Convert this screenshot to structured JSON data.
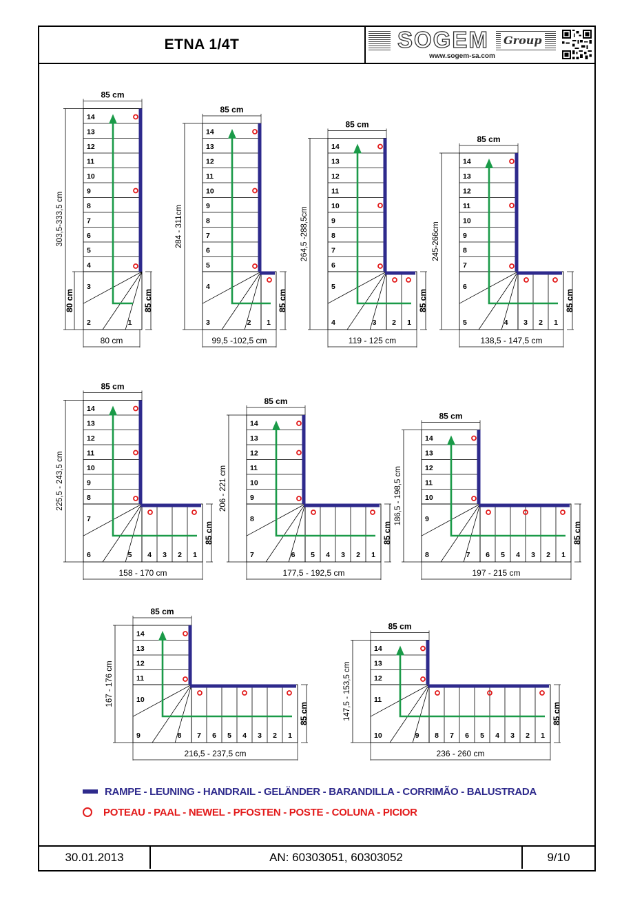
{
  "header": {
    "title": "ETNA 1/4T",
    "logo_text": "SOGEM",
    "logo_group": "Group",
    "logo_url": "www.sogem-sa.com"
  },
  "colors": {
    "handrail": "#2e2a8c",
    "newel": "#e21a1a",
    "arrow": "#1a9a48"
  },
  "diagrams": [
    {
      "width_label": "85 cm",
      "height_label": "303,5-333,5 cm",
      "landing_label": "80 cm",
      "side_label": "85 cm",
      "bottom_label": "80 cm",
      "steps_upper": [
        "14",
        "13",
        "12",
        "11",
        "10",
        "9",
        "8",
        "7",
        "6",
        "5",
        "4"
      ],
      "steps_winder": [
        "3",
        "2",
        "1"
      ],
      "steps_lower": []
    },
    {
      "width_label": "85 cm",
      "height_label": "284 - 311cm",
      "side_label": "85 cm",
      "bottom_label": "99,5 -102,5 cm",
      "steps_upper": [
        "14",
        "13",
        "12",
        "11",
        "10",
        "9",
        "8",
        "7",
        "6",
        "5"
      ],
      "steps_winder": [
        "4",
        "3",
        "2"
      ],
      "steps_lower": [
        "1"
      ]
    },
    {
      "width_label": "85 cm",
      "height_label": "264,5 -288,5cm",
      "side_label": "85 cm",
      "bottom_label": "119 - 125 cm",
      "steps_upper": [
        "14",
        "13",
        "12",
        "11",
        "10",
        "9",
        "8",
        "7",
        "6"
      ],
      "steps_winder": [
        "5",
        "4",
        "3"
      ],
      "steps_lower": [
        "2",
        "1"
      ]
    },
    {
      "width_label": "85 cm",
      "height_label": "245-266cm",
      "side_label": "85 cm",
      "bottom_label": "138,5 - 147,5 cm",
      "steps_upper": [
        "14",
        "13",
        "12",
        "11",
        "10",
        "9",
        "8",
        "7"
      ],
      "steps_winder": [
        "6",
        "5",
        "4"
      ],
      "steps_lower": [
        "3",
        "2",
        "1"
      ]
    },
    {
      "width_label": "85 cm",
      "height_label": "225,5 - 243,5 cm",
      "side_label": "85 cm",
      "bottom_label": "158 - 170 cm",
      "steps_upper": [
        "14",
        "13",
        "12",
        "11",
        "10",
        "9",
        "8"
      ],
      "steps_winder": [
        "7",
        "6",
        "5"
      ],
      "steps_lower": [
        "4",
        "3",
        "2",
        "1"
      ]
    },
    {
      "width_label": "85 cm",
      "height_label": "206 - 221 cm",
      "side_label": "85 cm",
      "bottom_label": "177,5 - 192,5 cm",
      "steps_upper": [
        "14",
        "13",
        "12",
        "11",
        "10",
        "9"
      ],
      "steps_winder": [
        "8",
        "7",
        "6"
      ],
      "steps_lower": [
        "5",
        "4",
        "3",
        "2",
        "1"
      ]
    },
    {
      "width_label": "85 cm",
      "height_label": "186,5 - 198,5 cm",
      "side_label": "85 cm",
      "bottom_label": "197 - 215 cm",
      "steps_upper": [
        "14",
        "13",
        "12",
        "11",
        "10"
      ],
      "steps_winder": [
        "9",
        "8",
        "7"
      ],
      "steps_lower": [
        "6",
        "5",
        "4",
        "3",
        "2",
        "1"
      ]
    },
    {
      "width_label": "85 cm",
      "height_label": "167 - 176 cm",
      "side_label": "85 cm",
      "bottom_label": "216,5 - 237,5 cm",
      "steps_upper": [
        "14",
        "13",
        "12",
        "11"
      ],
      "steps_winder": [
        "10",
        "9",
        "8"
      ],
      "steps_lower": [
        "7",
        "6",
        "5",
        "4",
        "3",
        "2",
        "1"
      ]
    },
    {
      "width_label": "85 cm",
      "height_label": "147,5 - 153,5 cm",
      "side_label": "85 cm",
      "bottom_label": "236 - 260 cm",
      "steps_upper": [
        "14",
        "13",
        "12"
      ],
      "steps_winder": [
        "11",
        "10",
        "9"
      ],
      "steps_lower": [
        "8",
        "7",
        "6",
        "5",
        "4",
        "3",
        "2",
        "1"
      ]
    }
  ],
  "legend": {
    "handrail": "RAMPE - LEUNING - HANDRAIL - GELÄNDER - BARANDILLA - CORRIMÃO - BALUSTRADA",
    "newel": "POTEAU - PAAL - NEWEL - PFOSTEN - POSTE - COLUNA - PICIOR"
  },
  "footer": {
    "date": "30.01.2013",
    "article_numbers": "AN: 60303051, 60303052",
    "page": "9/10"
  }
}
